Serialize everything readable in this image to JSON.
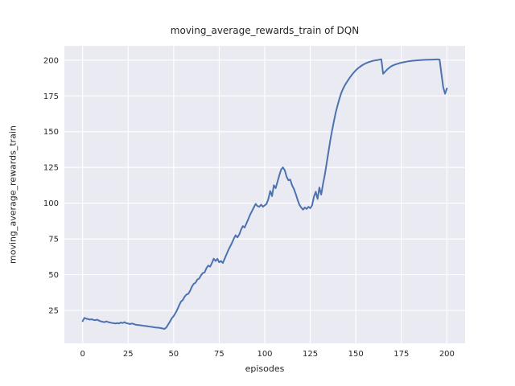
{
  "chart_data": {
    "type": "line",
    "title": "moving_average_rewards_train of DQN",
    "xlabel": "episodes",
    "ylabel": "moving_average_rewards_train",
    "xlim": [
      -10,
      210
    ],
    "ylim": [
      2,
      210
    ],
    "x_ticks": [
      0,
      25,
      50,
      75,
      100,
      125,
      150,
      175,
      200
    ],
    "y_ticks": [
      25,
      50,
      75,
      100,
      125,
      150,
      175,
      200
    ],
    "grid": true,
    "legend_position": "none",
    "colors": {
      "line": "#4c72b0",
      "plot_background": "#eaeaf2",
      "grid": "#ffffff",
      "text": "#262626",
      "figure_background": "#ffffff"
    },
    "series": [
      {
        "name": "moving_average_rewards_train",
        "color": "#4c72b0",
        "points": [
          [
            0,
            17.5
          ],
          [
            1,
            19.8
          ],
          [
            2,
            19.3
          ],
          [
            3,
            19.0
          ],
          [
            4,
            18.6
          ],
          [
            5,
            18.9
          ],
          [
            6,
            18.4
          ],
          [
            7,
            18.2
          ],
          [
            8,
            18.6
          ],
          [
            9,
            17.9
          ],
          [
            10,
            17.4
          ],
          [
            11,
            17.1
          ],
          [
            12,
            16.8
          ],
          [
            13,
            17.4
          ],
          [
            14,
            16.9
          ],
          [
            15,
            16.6
          ],
          [
            16,
            16.3
          ],
          [
            17,
            16.1
          ],
          [
            18,
            15.9
          ],
          [
            19,
            16.2
          ],
          [
            20,
            15.9
          ],
          [
            21,
            16.6
          ],
          [
            22,
            16.2
          ],
          [
            23,
            16.8
          ],
          [
            24,
            16.1
          ],
          [
            25,
            15.9
          ],
          [
            26,
            15.5
          ],
          [
            27,
            15.9
          ],
          [
            28,
            15.6
          ],
          [
            29,
            15.1
          ],
          [
            30,
            14.9
          ],
          [
            31,
            14.8
          ],
          [
            32,
            14.6
          ],
          [
            33,
            14.4
          ],
          [
            34,
            14.2
          ],
          [
            35,
            14.1
          ],
          [
            36,
            13.9
          ],
          [
            37,
            13.7
          ],
          [
            38,
            13.5
          ],
          [
            39,
            13.3
          ],
          [
            40,
            13.1
          ],
          [
            41,
            13.0
          ],
          [
            42,
            12.9
          ],
          [
            43,
            12.7
          ],
          [
            44,
            12.4
          ],
          [
            45,
            12.1
          ],
          [
            46,
            13.2
          ],
          [
            47,
            15.2
          ],
          [
            48,
            17.3
          ],
          [
            49,
            19.6
          ],
          [
            50,
            21.1
          ],
          [
            51,
            23.2
          ],
          [
            52,
            25.6
          ],
          [
            53,
            28.6
          ],
          [
            54,
            31.2
          ],
          [
            55,
            32.3
          ],
          [
            56,
            34.6
          ],
          [
            57,
            36.1
          ],
          [
            58,
            36.6
          ],
          [
            59,
            38.7
          ],
          [
            60,
            41.6
          ],
          [
            61,
            43.6
          ],
          [
            62,
            44.4
          ],
          [
            63,
            46.6
          ],
          [
            64,
            47.4
          ],
          [
            65,
            49.6
          ],
          [
            66,
            51.2
          ],
          [
            67,
            51.6
          ],
          [
            68,
            54.6
          ],
          [
            69,
            56.4
          ],
          [
            70,
            55.6
          ],
          [
            71,
            58.2
          ],
          [
            72,
            61.2
          ],
          [
            73,
            59.6
          ],
          [
            74,
            61.1
          ],
          [
            75,
            58.7
          ],
          [
            76,
            59.6
          ],
          [
            77,
            58.2
          ],
          [
            78,
            61.2
          ],
          [
            79,
            64.2
          ],
          [
            80,
            67.2
          ],
          [
            81,
            69.7
          ],
          [
            82,
            72.2
          ],
          [
            83,
            75.1
          ],
          [
            84,
            77.6
          ],
          [
            85,
            76.1
          ],
          [
            86,
            78.1
          ],
          [
            87,
            81.5
          ],
          [
            88,
            84.0
          ],
          [
            89,
            83.0
          ],
          [
            90,
            86.0
          ],
          [
            91,
            89.0
          ],
          [
            92,
            92.0
          ],
          [
            93,
            94.5
          ],
          [
            94,
            97.0
          ],
          [
            95,
            99.5
          ],
          [
            96,
            98.0
          ],
          [
            97,
            97.5
          ],
          [
            98,
            99.0
          ],
          [
            99,
            97.5
          ],
          [
            100,
            98.5
          ],
          [
            101,
            99.5
          ],
          [
            102,
            103.0
          ],
          [
            103,
            108.5
          ],
          [
            104,
            105.0
          ],
          [
            105,
            112.5
          ],
          [
            106,
            110.5
          ],
          [
            107,
            115.0
          ],
          [
            108,
            119.5
          ],
          [
            109,
            123.5
          ],
          [
            110,
            125.0
          ],
          [
            111,
            123.0
          ],
          [
            112,
            118.5
          ],
          [
            113,
            116.0
          ],
          [
            114,
            116.5
          ],
          [
            115,
            112.5
          ],
          [
            116,
            110.0
          ],
          [
            117,
            106.5
          ],
          [
            118,
            102.5
          ],
          [
            119,
            99.0
          ],
          [
            120,
            97.0
          ],
          [
            121,
            95.5
          ],
          [
            122,
            97.0
          ],
          [
            123,
            96.0
          ],
          [
            124,
            97.5
          ],
          [
            125,
            96.5
          ],
          [
            126,
            98.5
          ],
          [
            127,
            104.5
          ],
          [
            128,
            108.0
          ],
          [
            129,
            103.0
          ],
          [
            130,
            111.0
          ],
          [
            131,
            106.0
          ],
          [
            132,
            113.5
          ],
          [
            133,
            120.0
          ],
          [
            134,
            128.0
          ],
          [
            135,
            136.0
          ],
          [
            136,
            144.0
          ],
          [
            137,
            151.0
          ],
          [
            138,
            157.5
          ],
          [
            139,
            163.5
          ],
          [
            140,
            168.5
          ],
          [
            141,
            173.0
          ],
          [
            142,
            177.0
          ],
          [
            143,
            180.0
          ],
          [
            144,
            182.5
          ],
          [
            145,
            184.5
          ],
          [
            146,
            186.5
          ],
          [
            147,
            188.3
          ],
          [
            148,
            190.0
          ],
          [
            149,
            191.5
          ],
          [
            150,
            192.9
          ],
          [
            151,
            194.1
          ],
          [
            152,
            195.1
          ],
          [
            153,
            196.0
          ],
          [
            154,
            196.8
          ],
          [
            155,
            197.5
          ],
          [
            156,
            198.1
          ],
          [
            157,
            198.6
          ],
          [
            158,
            199.0
          ],
          [
            159,
            199.4
          ],
          [
            160,
            199.7
          ],
          [
            161,
            199.9
          ],
          [
            162,
            200.1
          ],
          [
            163,
            200.4
          ],
          [
            164,
            200.6
          ],
          [
            165,
            190.5
          ],
          [
            166,
            191.8
          ],
          [
            167,
            193.2
          ],
          [
            168,
            194.3
          ],
          [
            169,
            195.3
          ],
          [
            170,
            196.1
          ],
          [
            171,
            196.6
          ],
          [
            172,
            197.1
          ],
          [
            174,
            197.9
          ],
          [
            176,
            198.5
          ],
          [
            178,
            199.0
          ],
          [
            180,
            199.4
          ],
          [
            182,
            199.7
          ],
          [
            184,
            199.9
          ],
          [
            186,
            200.1
          ],
          [
            188,
            200.2
          ],
          [
            190,
            200.3
          ],
          [
            192,
            200.4
          ],
          [
            194,
            200.5
          ],
          [
            195,
            200.5
          ],
          [
            196,
            200.4
          ],
          [
            197,
            190.5
          ],
          [
            198,
            181.0
          ],
          [
            199,
            176.5
          ],
          [
            200,
            180.2
          ]
        ]
      }
    ]
  }
}
